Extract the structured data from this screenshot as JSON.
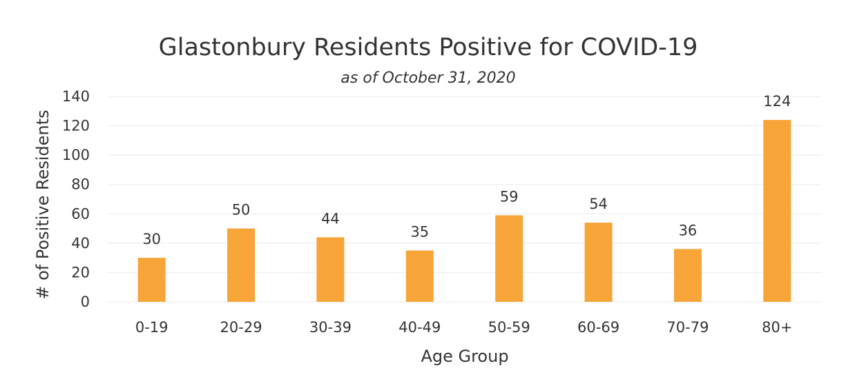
{
  "chart_data": {
    "type": "bar",
    "title": "Glastonbury Residents Positive for COVID-19",
    "subtitle": "as of October 31, 2020",
    "xlabel": "Age Group",
    "ylabel": "# of Positive Residents",
    "categories": [
      "0-19",
      "20-29",
      "30-39",
      "40-49",
      "50-59",
      "60-69",
      "70-79",
      "80+"
    ],
    "values": [
      30,
      50,
      44,
      35,
      59,
      54,
      36,
      124
    ],
    "ylim": [
      0,
      140
    ],
    "yticks": [
      "0",
      "20",
      "40",
      "60",
      "80",
      "100",
      "120",
      "140"
    ],
    "data_labels": [
      "30",
      "50",
      "44",
      "35",
      "59",
      "54",
      "36",
      "124"
    ],
    "grid": true,
    "legend": "none",
    "colors": {
      "bar": "#F7A439",
      "grid": "#EBEBEB",
      "text": "#333333"
    }
  }
}
